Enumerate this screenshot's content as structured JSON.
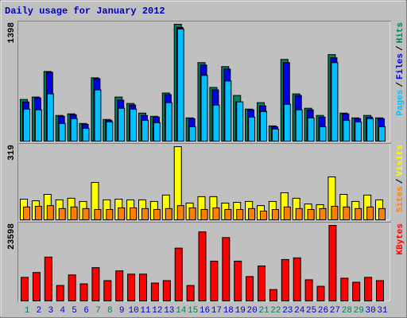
{
  "chart_data": [
    {
      "type": "bar",
      "title": "Daily usage for January 2012",
      "ylim": [
        0,
        1398
      ],
      "yticks": [
        1398
      ],
      "legend_separator": "/",
      "series": [
        {
          "name": "Hits",
          "color": "#00805c",
          "values": [
            498,
            527,
            833,
            307,
            326,
            211,
            757,
            259,
            527,
            450,
            335,
            297,
            575,
            1398,
            278,
            939,
            642,
            891,
            546,
            383,
            460,
            182,
            977,
            565,
            393,
            307,
            1035,
            335,
            278,
            307,
            278
          ]
        },
        {
          "name": "Files",
          "color": "#0000e0",
          "values": [
            469,
            517,
            824,
            297,
            316,
            201,
            747,
            249,
            489,
            431,
            307,
            287,
            556,
            1360,
            268,
            910,
            613,
            862,
            469,
            374,
            422,
            172,
            939,
            546,
            374,
            287,
            996,
            326,
            268,
            287,
            268
          ]
        },
        {
          "name": "Pages",
          "color": "#00c0ff",
          "values": [
            383,
            374,
            565,
            211,
            268,
            153,
            613,
            230,
            393,
            383,
            249,
            220,
            460,
            1341,
            172,
            786,
            431,
            719,
            469,
            287,
            354,
            144,
            441,
            374,
            278,
            172,
            939,
            249,
            230,
            268,
            172
          ]
        }
      ]
    },
    {
      "type": "bar",
      "ylim": [
        0,
        319
      ],
      "yticks": [
        319
      ],
      "legend_separator": "/",
      "series": [
        {
          "name": "Visits",
          "color": "#ffff00",
          "values": [
            90,
            83,
            111,
            87,
            94,
            80,
            163,
            87,
            90,
            87,
            87,
            80,
            108,
            319,
            73,
            101,
            101,
            73,
            76,
            80,
            62,
            80,
            118,
            94,
            69,
            66,
            187,
            111,
            80,
            108,
            87
          ]
        },
        {
          "name": "Sites",
          "color": "#ff8000",
          "values": [
            56,
            59,
            62,
            49,
            56,
            49,
            45,
            45,
            52,
            52,
            49,
            45,
            49,
            62,
            52,
            45,
            52,
            45,
            45,
            49,
            38,
            45,
            56,
            49,
            45,
            49,
            59,
            56,
            49,
            56,
            49
          ]
        }
      ]
    },
    {
      "type": "bar",
      "ylim": [
        0,
        23598
      ],
      "yticks": [
        23598
      ],
      "categories": [
        "1",
        "2",
        "3",
        "4",
        "5",
        "6",
        "7",
        "8",
        "9",
        "10",
        "11",
        "12",
        "13",
        "14",
        "15",
        "16",
        "17",
        "18",
        "19",
        "20",
        "21",
        "22",
        "23",
        "24",
        "25",
        "26",
        "27",
        "28",
        "29",
        "30",
        "31"
      ],
      "category_colors": [
        "#00805c",
        "#0000c0",
        "#0000c0",
        "#0000c0",
        "#0000c0",
        "#0000c0",
        "#00805c",
        "#00805c",
        "#0000c0",
        "#0000c0",
        "#0000c0",
        "#0000c0",
        "#0000c0",
        "#00805c",
        "#00805c",
        "#0000c0",
        "#0000c0",
        "#0000c0",
        "#0000c0",
        "#0000c0",
        "#00805c",
        "#00805c",
        "#0000c0",
        "#0000c0",
        "#0000c0",
        "#0000c0",
        "#0000c0",
        "#00805c",
        "#00805c",
        "#0000c0",
        "#0000c0"
      ],
      "series": [
        {
          "name": "KBytes",
          "color": "#ff0000",
          "values": [
            7357,
            8880,
            13700,
            4820,
            8120,
            5330,
            10400,
            6340,
            9390,
            8370,
            8370,
            5580,
            6340,
            16490,
            4820,
            21570,
            12430,
            19790,
            12430,
            7610,
            10910,
            3550,
            12940,
            13450,
            6600,
            4570,
            23598,
            7100,
            5840,
            7360,
            6340
          ]
        }
      ]
    }
  ]
}
